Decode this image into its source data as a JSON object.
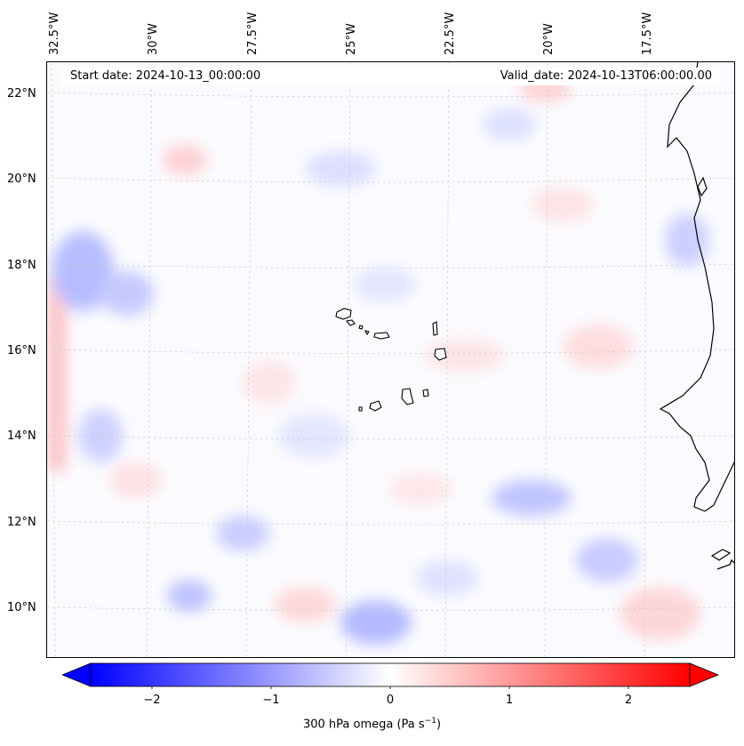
{
  "map": {
    "variable": "300 hPa omega",
    "units_text": "(Pa s",
    "units_exp": "−1",
    "units_close": ")",
    "start_date": "Start date: 2024-10-13_00:00:00",
    "valid_date": "Valid_date: 2024-10-13T06:00:00.00",
    "lon_labels": [
      "32.5°W",
      "30°W",
      "27.5°W",
      "25°W",
      "22.5°W",
      "20°W",
      "17.5°W"
    ],
    "lat_labels": [
      "22°N",
      "20°N",
      "18°N",
      "16°N",
      "14°N",
      "12°N",
      "10°N"
    ],
    "colorbar_ticks": [
      "−2",
      "−1",
      "0",
      "1",
      "2"
    ],
    "colorbar_range": [
      -2.6,
      2.6
    ],
    "colors": {
      "negative": "#0000ff",
      "zero": "#ffffff",
      "positive": "#ff0000",
      "coast": "#000000"
    },
    "features": [
      "Cape Verde islands",
      "West African coastline"
    ]
  }
}
